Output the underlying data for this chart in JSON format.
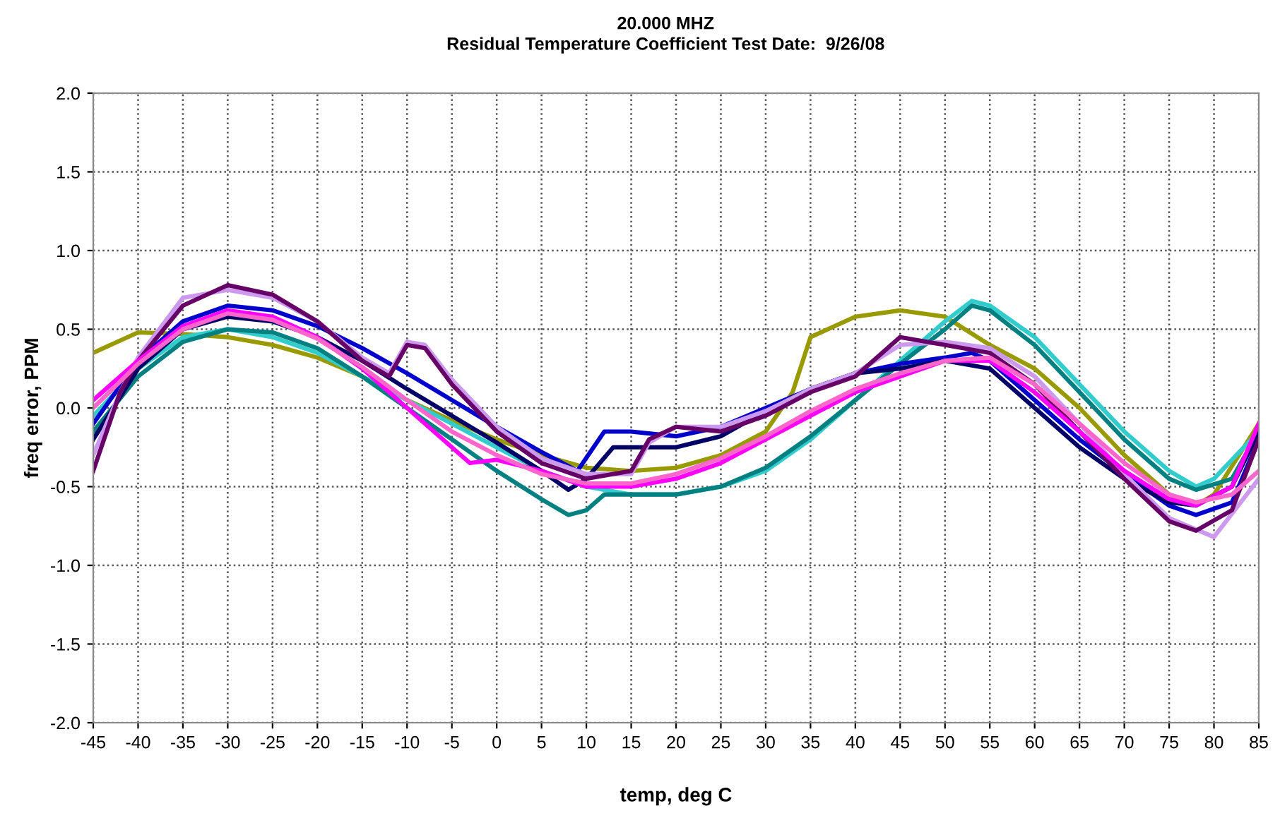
{
  "chart_data": {
    "type": "line",
    "title": "20.000 MHZ",
    "subtitle": "Residual Temperature Coefficient Test Date:  9/26/08",
    "xlabel": "temp, deg C",
    "ylabel": "freq error, PPM",
    "xlim": [
      -45,
      85
    ],
    "xticks": [
      -45,
      -40,
      -35,
      -30,
      -25,
      -20,
      -15,
      -10,
      -5,
      0,
      5,
      10,
      15,
      20,
      25,
      30,
      35,
      40,
      45,
      50,
      55,
      60,
      65,
      70,
      75,
      80,
      85
    ],
    "ylim": [
      -2.0,
      2.0
    ],
    "yticks": [
      {
        "value": -2,
        "label": "-2.0"
      },
      -1.5,
      {
        "value": -1,
        "label": "-1.0"
      },
      -0.5,
      {
        "value": 0,
        "label": "0.0"
      },
      0.5,
      {
        "value": 1,
        "label": "1.0"
      },
      1.5,
      {
        "value": 2,
        "label": "2.0"
      }
    ],
    "grid": true,
    "marker": "none",
    "line_style": "solid",
    "series": [
      {
        "color": "#999900",
        "x": [
          -45,
          -40,
          -35,
          -30,
          -25,
          -20,
          -15,
          -10,
          -5,
          0,
          5,
          10,
          15,
          20,
          25,
          30,
          33,
          35,
          40,
          45,
          50,
          55,
          60,
          65,
          70,
          75,
          78,
          80,
          85
        ],
        "values": [
          0.35,
          0.48,
          0.47,
          0.45,
          0.4,
          0.32,
          0.2,
          0.05,
          -0.08,
          -0.2,
          -0.3,
          -0.38,
          -0.4,
          -0.38,
          -0.3,
          -0.15,
          0.1,
          0.45,
          0.58,
          0.62,
          0.58,
          0.4,
          0.25,
          0.0,
          -0.3,
          -0.55,
          -0.62,
          -0.55,
          -0.1
        ]
      },
      {
        "color": "#33cccc",
        "x": [
          -45,
          -40,
          -35,
          -30,
          -25,
          -20,
          -15,
          -10,
          -5,
          0,
          5,
          10,
          15,
          20,
          25,
          30,
          35,
          40,
          45,
          50,
          53,
          55,
          60,
          65,
          70,
          75,
          78,
          80,
          85
        ],
        "values": [
          -0.05,
          0.25,
          0.45,
          0.5,
          0.45,
          0.35,
          0.2,
          0.05,
          -0.1,
          -0.25,
          -0.4,
          -0.5,
          -0.55,
          -0.55,
          -0.5,
          -0.4,
          -0.2,
          0.05,
          0.3,
          0.55,
          0.68,
          0.65,
          0.45,
          0.15,
          -0.15,
          -0.4,
          -0.5,
          -0.45,
          -0.15
        ]
      },
      {
        "color": "#008080",
        "x": [
          -45,
          -40,
          -35,
          -30,
          -25,
          -20,
          -15,
          -10,
          -5,
          0,
          5,
          8,
          10,
          12,
          15,
          20,
          25,
          30,
          35,
          40,
          45,
          50,
          53,
          55,
          60,
          65,
          70,
          75,
          78,
          82,
          85
        ],
        "values": [
          -0.15,
          0.2,
          0.42,
          0.5,
          0.48,
          0.38,
          0.2,
          0.0,
          -0.2,
          -0.4,
          -0.58,
          -0.68,
          -0.65,
          -0.55,
          -0.55,
          -0.55,
          -0.5,
          -0.38,
          -0.18,
          0.05,
          0.28,
          0.5,
          0.65,
          0.62,
          0.4,
          0.1,
          -0.2,
          -0.45,
          -0.52,
          -0.45,
          -0.15
        ]
      },
      {
        "color": "#0000cc",
        "x": [
          -45,
          -40,
          -35,
          -30,
          -25,
          -20,
          -15,
          -10,
          -5,
          0,
          5,
          9,
          12,
          15,
          20,
          25,
          30,
          35,
          40,
          45,
          50,
          53,
          55,
          60,
          65,
          70,
          75,
          78,
          82,
          85
        ],
        "values": [
          -0.1,
          0.3,
          0.55,
          0.65,
          0.62,
          0.52,
          0.38,
          0.22,
          0.05,
          -0.12,
          -0.28,
          -0.4,
          -0.15,
          -0.15,
          -0.18,
          -0.12,
          0.0,
          0.12,
          0.22,
          0.28,
          0.32,
          0.35,
          0.3,
          0.05,
          -0.2,
          -0.42,
          -0.62,
          -0.68,
          -0.6,
          -0.2
        ]
      },
      {
        "color": "#000066",
        "x": [
          -45,
          -40,
          -35,
          -30,
          -25,
          -20,
          -15,
          -10,
          -5,
          0,
          5,
          8,
          10,
          13,
          15,
          20,
          25,
          30,
          35,
          40,
          45,
          50,
          55,
          60,
          65,
          70,
          75,
          78,
          82,
          85
        ],
        "values": [
          -0.2,
          0.25,
          0.5,
          0.58,
          0.55,
          0.45,
          0.3,
          0.12,
          -0.05,
          -0.22,
          -0.4,
          -0.52,
          -0.45,
          -0.25,
          -0.25,
          -0.25,
          -0.18,
          -0.02,
          0.12,
          0.22,
          0.25,
          0.3,
          0.25,
          0.0,
          -0.25,
          -0.45,
          -0.6,
          -0.62,
          -0.5,
          -0.15
        ]
      },
      {
        "color": "#cc99ee",
        "x": [
          -45,
          -42,
          -40,
          -35,
          -30,
          -25,
          -20,
          -15,
          -12,
          -10,
          -8,
          -5,
          0,
          5,
          10,
          15,
          17,
          20,
          25,
          30,
          35,
          40,
          45,
          50,
          55,
          60,
          65,
          70,
          75,
          80,
          85
        ],
        "values": [
          -0.3,
          0.1,
          0.32,
          0.7,
          0.75,
          0.7,
          0.55,
          0.32,
          0.22,
          0.42,
          0.4,
          0.18,
          -0.12,
          -0.32,
          -0.42,
          -0.42,
          -0.22,
          -0.12,
          -0.12,
          -0.02,
          0.12,
          0.22,
          0.4,
          0.42,
          0.38,
          0.2,
          -0.1,
          -0.42,
          -0.7,
          -0.82,
          -0.45
        ]
      },
      {
        "color": "#660066",
        "x": [
          -45,
          -42,
          -40,
          -35,
          -30,
          -25,
          -20,
          -15,
          -12,
          -10,
          -8,
          -5,
          0,
          5,
          10,
          15,
          17,
          20,
          25,
          30,
          35,
          40,
          45,
          50,
          55,
          60,
          65,
          70,
          75,
          78,
          82,
          85
        ],
        "values": [
          -0.4,
          0.1,
          0.3,
          0.65,
          0.78,
          0.72,
          0.55,
          0.3,
          0.2,
          0.4,
          0.38,
          0.15,
          -0.15,
          -0.35,
          -0.45,
          -0.4,
          -0.2,
          -0.12,
          -0.15,
          -0.05,
          0.1,
          0.2,
          0.45,
          0.4,
          0.35,
          0.15,
          -0.15,
          -0.45,
          -0.72,
          -0.78,
          -0.65,
          -0.2
        ]
      },
      {
        "color": "#ff00ff",
        "x": [
          -45,
          -40,
          -35,
          -30,
          -25,
          -20,
          -15,
          -10,
          -5,
          -3,
          0,
          5,
          10,
          15,
          20,
          25,
          30,
          35,
          40,
          45,
          50,
          55,
          60,
          65,
          70,
          75,
          78,
          82,
          85
        ],
        "values": [
          0.05,
          0.3,
          0.52,
          0.62,
          0.58,
          0.45,
          0.25,
          0.0,
          -0.25,
          -0.35,
          -0.33,
          -0.4,
          -0.5,
          -0.5,
          -0.45,
          -0.35,
          -0.2,
          -0.05,
          0.1,
          0.2,
          0.3,
          0.3,
          0.1,
          -0.15,
          -0.4,
          -0.58,
          -0.62,
          -0.5,
          -0.1
        ]
      },
      {
        "color": "#ff66cc",
        "x": [
          -45,
          -40,
          -35,
          -30,
          -25,
          -20,
          -15,
          -10,
          -5,
          0,
          5,
          10,
          15,
          20,
          25,
          30,
          35,
          40,
          45,
          50,
          55,
          60,
          65,
          70,
          75,
          78,
          82,
          85
        ],
        "values": [
          0.0,
          0.28,
          0.5,
          0.6,
          0.56,
          0.44,
          0.26,
          0.05,
          -0.15,
          -0.3,
          -0.42,
          -0.48,
          -0.48,
          -0.42,
          -0.32,
          -0.18,
          -0.02,
          0.12,
          0.22,
          0.3,
          0.32,
          0.15,
          -0.1,
          -0.35,
          -0.55,
          -0.6,
          -0.55,
          -0.4
        ]
      }
    ]
  }
}
